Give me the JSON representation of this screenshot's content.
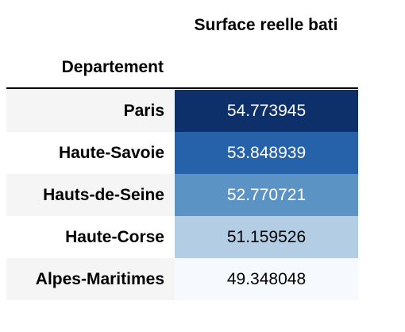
{
  "table": {
    "column_header": "Surface reelle bati",
    "index_name": "Departement",
    "rows": [
      {
        "label": "Paris",
        "value": "54.773945",
        "bg": "#0e306a",
        "fg": "#ffffff"
      },
      {
        "label": "Haute-Savoie",
        "value": "53.848939",
        "bg": "#2662a9",
        "fg": "#ffffff"
      },
      {
        "label": "Hauts-de-Seine",
        "value": "52.770721",
        "bg": "#5b93c5",
        "fg": "#ffffff"
      },
      {
        "label": "Haute-Corse",
        "value": "51.159526",
        "bg": "#b2cde4",
        "fg": "#000000"
      },
      {
        "label": "Alpes-Maritimes",
        "value": "49.348048",
        "bg": "#f6fafe",
        "fg": "#000000"
      }
    ]
  }
}
